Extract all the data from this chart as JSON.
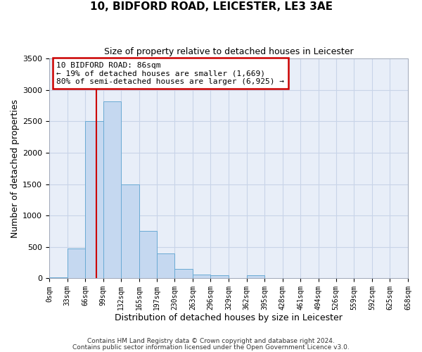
{
  "title1": "10, BIDFORD ROAD, LEICESTER, LE3 3AE",
  "title2": "Size of property relative to detached houses in Leicester",
  "xlabel": "Distribution of detached houses by size in Leicester",
  "ylabel": "Number of detached properties",
  "bar_color": "#c5d8f0",
  "bar_edge_color": "#6aaad4",
  "plot_bg_color": "#e8eef8",
  "fig_bg_color": "#ffffff",
  "grid_color": "#c8d4e8",
  "vline_x": 86,
  "vline_color": "#cc0000",
  "annotation_box_text": "10 BIDFORD ROAD: 86sqm\n← 19% of detached houses are smaller (1,669)\n80% of semi-detached houses are larger (6,925) →",
  "annotation_box_edge_color": "#cc0000",
  "bin_edges": [
    0,
    33,
    66,
    99,
    132,
    165,
    197,
    230,
    263,
    296,
    329,
    362,
    395,
    428,
    461,
    494,
    526,
    559,
    592,
    625,
    658
  ],
  "bar_heights": [
    20,
    480,
    2500,
    2820,
    1500,
    750,
    400,
    150,
    55,
    50,
    0,
    50,
    0,
    0,
    0,
    0,
    0,
    0,
    0,
    0
  ],
  "ylim": [
    0,
    3500
  ],
  "xlim": [
    0,
    658
  ],
  "yticks": [
    0,
    500,
    1000,
    1500,
    2000,
    2500,
    3000,
    3500
  ],
  "xtick_labels": [
    "0sqm",
    "33sqm",
    "66sqm",
    "99sqm",
    "132sqm",
    "165sqm",
    "197sqm",
    "230sqm",
    "263sqm",
    "296sqm",
    "329sqm",
    "362sqm",
    "395sqm",
    "428sqm",
    "461sqm",
    "494sqm",
    "526sqm",
    "559sqm",
    "592sqm",
    "625sqm",
    "658sqm"
  ],
  "footnote1": "Contains HM Land Registry data © Crown copyright and database right 2024.",
  "footnote2": "Contains public sector information licensed under the Open Government Licence v3.0."
}
